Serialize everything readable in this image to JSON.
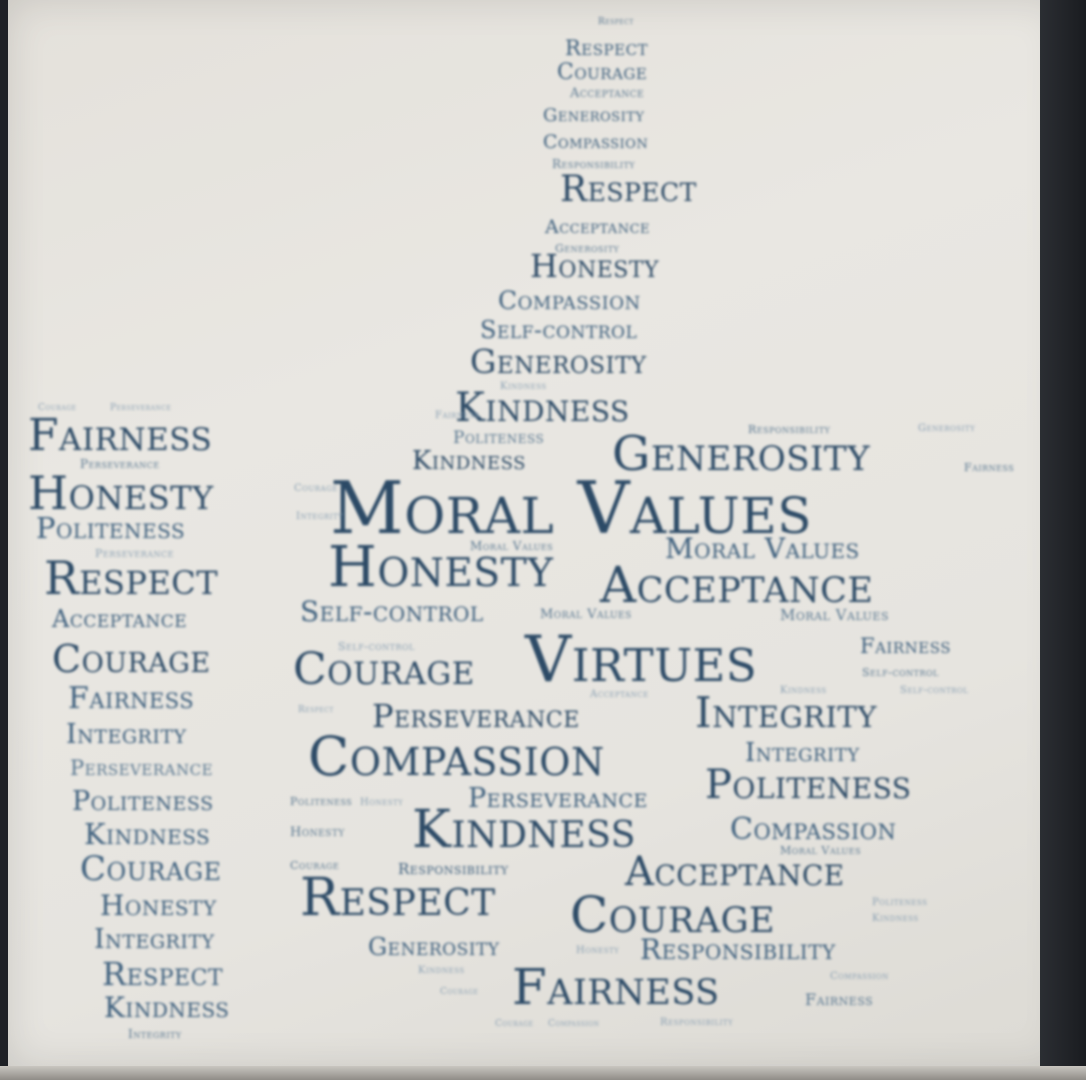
{
  "words": {
    "moral_values": "Moral Values",
    "virtues": "Virtues",
    "fairness": "Fairness",
    "honesty": "Honesty",
    "politeness": "Politeness",
    "respect": "Respect",
    "acceptance": "Acceptance",
    "courage": "Courage",
    "integrity": "Integrity",
    "perseverance": "Perseverance",
    "kindness": "Kindness",
    "compassion": "Compassion",
    "generosity": "Generosity",
    "self_control": "Self-control",
    "responsibility": "Responsibility"
  },
  "colors": {
    "dark_blue": "#2c4a66",
    "mid_blue": "#3d5f7d",
    "light_blue": "#5a7891",
    "pale_blue": "#8aa0b3",
    "paper": "#e6e4df"
  }
}
